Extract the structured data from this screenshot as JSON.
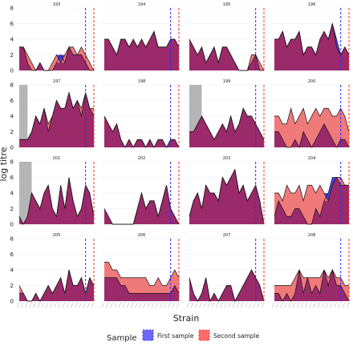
{
  "chart_data": {
    "type": "area",
    "title": "",
    "xlabel": "Strain",
    "ylabel": "log titre",
    "ylim": [
      0,
      8
    ],
    "yticks": [
      0,
      2,
      4,
      6,
      8
    ],
    "grid": true,
    "legend": {
      "title": "Sample",
      "position": "bottom",
      "entries": [
        {
          "name": "First sample",
          "color": "#3a33ff"
        },
        {
          "name": "Second sample",
          "color": "#ff3a3a"
        }
      ]
    },
    "overlap_color": "#9a2a6a",
    "second_fill_color": "#f07a7a",
    "region_color": "#b5b5b5",
    "x_count": 19,
    "x_tick_labels_note": "rotated strain labels (illegible)",
    "panels": [
      {
        "id": "193",
        "first": [
          3,
          3,
          1,
          0,
          0,
          1,
          0,
          0,
          0,
          1,
          2,
          1,
          3,
          2,
          2,
          2,
          1,
          0,
          0
        ],
        "second": [
          3,
          3,
          2,
          1,
          0,
          1,
          0,
          0,
          1,
          2,
          1,
          2,
          3,
          3,
          2,
          3,
          2,
          1,
          0
        ],
        "first_line": 16,
        "second_line": 18
      },
      {
        "id": "194",
        "first": [
          4,
          4,
          3,
          2,
          4,
          4,
          3,
          4,
          3,
          4,
          3,
          4,
          5,
          3,
          3,
          3,
          4,
          4,
          3
        ],
        "second": [
          4,
          4,
          3,
          2,
          4,
          4,
          3,
          4,
          3,
          4,
          3,
          4,
          5,
          3,
          3,
          3,
          4,
          4,
          3
        ],
        "first_line": 16,
        "second_line": 18
      },
      {
        "id": "195",
        "first": [
          4,
          3,
          2,
          3,
          1,
          2,
          3,
          1,
          3,
          3,
          2,
          1,
          0,
          0,
          0,
          1,
          2,
          0,
          0
        ],
        "second": [
          4,
          3,
          2,
          3,
          1,
          2,
          3,
          1,
          3,
          3,
          2,
          1,
          0,
          0,
          0,
          2,
          2,
          1,
          0
        ],
        "first_line": 16,
        "second_line": 18
      },
      {
        "id": "196",
        "first": [
          4,
          4,
          5,
          3,
          4,
          4,
          5,
          2,
          3,
          3,
          2,
          4,
          5,
          4,
          6,
          4,
          2,
          3,
          2
        ],
        "second": [
          4,
          4,
          5,
          3,
          4,
          4,
          5,
          2,
          3,
          3,
          2,
          4,
          5,
          4,
          6,
          3,
          2,
          3,
          2
        ],
        "first_line": 16,
        "second_line": 18
      },
      {
        "id": "197",
        "first": [
          1,
          1,
          1,
          2,
          4,
          3,
          5,
          2,
          4,
          6,
          5,
          5,
          7,
          5,
          6,
          4,
          7,
          5,
          4
        ],
        "second": [
          1,
          1,
          1,
          2,
          4,
          3,
          5,
          3,
          4,
          6,
          5,
          5,
          7,
          5,
          6,
          5,
          7,
          5,
          5
        ],
        "first_line": 16,
        "second_line": 18,
        "region": [
          0,
          2,
          8
        ]
      },
      {
        "id": "198",
        "first": [
          4,
          3,
          2,
          3,
          1,
          0,
          1,
          0,
          1,
          1,
          0,
          1,
          0,
          1,
          1,
          0,
          1,
          1,
          0
        ],
        "second": [
          4,
          3,
          2,
          3,
          1,
          0,
          1,
          0,
          1,
          1,
          0,
          1,
          0,
          1,
          1,
          0,
          1,
          1,
          0
        ],
        "first_line": 16,
        "second_line": 18
      },
      {
        "id": "199",
        "first": [
          2,
          2,
          3,
          4,
          3,
          2,
          1,
          2,
          3,
          2,
          4,
          2,
          3,
          5,
          4,
          4,
          3,
          2,
          1
        ],
        "second": [
          2,
          2,
          3,
          4,
          3,
          2,
          1,
          2,
          3,
          2,
          4,
          2,
          3,
          5,
          4,
          4,
          3,
          2,
          1
        ],
        "first_line": 16,
        "second_line": 18,
        "region": [
          0,
          3,
          8
        ]
      },
      {
        "id": "200",
        "first": [
          2,
          2,
          1,
          0,
          0,
          1,
          0,
          2,
          1,
          0,
          1,
          2,
          3,
          2,
          1,
          0,
          1,
          1,
          0
        ],
        "second": [
          4,
          4,
          3,
          3,
          5,
          3,
          4,
          5,
          3,
          4,
          5,
          4,
          5,
          5,
          4,
          4,
          5,
          4,
          2
        ],
        "first_line": 16,
        "second_line": 18
      },
      {
        "id": "201",
        "first": [
          1,
          0,
          1,
          4,
          3,
          2,
          4,
          5,
          2,
          1,
          5,
          2,
          6,
          3,
          1,
          2,
          5,
          4,
          1
        ],
        "second": [
          1,
          0,
          1,
          4,
          3,
          2,
          4,
          5,
          2,
          1,
          5,
          2,
          6,
          3,
          1,
          2,
          5,
          4,
          1
        ],
        "first_line": 16,
        "second_line": 18,
        "region": [
          0,
          3,
          8
        ]
      },
      {
        "id": "202",
        "first": [
          2,
          1,
          0,
          0,
          0,
          0,
          0,
          0,
          2,
          4,
          2,
          3,
          3,
          1,
          3,
          5,
          2,
          1,
          0
        ],
        "second": [
          2,
          1,
          0,
          0,
          0,
          0,
          0,
          0,
          2,
          4,
          2,
          3,
          3,
          1,
          3,
          5,
          2,
          1,
          0
        ],
        "first_line": 16,
        "second_line": 18
      },
      {
        "id": "203",
        "first": [
          1,
          3,
          4,
          2,
          5,
          4,
          4,
          3,
          6,
          5,
          6,
          7,
          4,
          5,
          3,
          4,
          5,
          3,
          0
        ],
        "second": [
          1,
          3,
          4,
          2,
          5,
          4,
          4,
          3,
          6,
          5,
          6,
          7,
          4,
          5,
          3,
          4,
          5,
          3,
          0
        ],
        "first_line": 16,
        "second_line": 18
      },
      {
        "id": "204",
        "first": [
          1,
          3,
          2,
          1,
          1,
          2,
          2,
          1,
          0,
          0,
          2,
          1,
          3,
          4,
          6,
          6,
          5,
          5,
          5
        ],
        "second": [
          4,
          4,
          3,
          5,
          4,
          4,
          5,
          3,
          5,
          5,
          4,
          5,
          4,
          3,
          5,
          6,
          6,
          5,
          5
        ],
        "first_line": 16,
        "second_line": 18
      },
      {
        "id": "205",
        "first": [
          1,
          1,
          0,
          0,
          1,
          0,
          1,
          2,
          1,
          2,
          3,
          1,
          4,
          2,
          2,
          3,
          1,
          3,
          2
        ],
        "second": [
          2,
          1,
          0,
          0,
          1,
          0,
          1,
          2,
          1,
          2,
          3,
          1,
          4,
          2,
          2,
          3,
          1,
          3,
          2
        ],
        "first_line": 16,
        "second_line": 18
      },
      {
        "id": "206",
        "first": [
          3,
          3,
          3,
          3,
          2,
          2,
          1,
          1,
          1,
          1,
          1,
          1,
          1,
          1,
          1,
          1,
          1,
          2,
          1
        ],
        "second": [
          5,
          5,
          4,
          4,
          3,
          3,
          3,
          3,
          3,
          3,
          3,
          2,
          2,
          3,
          2,
          2,
          3,
          4,
          3
        ],
        "first_line": 16,
        "second_line": 18
      },
      {
        "id": "207",
        "first": [
          3,
          1,
          0,
          1,
          3,
          0,
          1,
          0,
          1,
          2,
          2,
          0,
          1,
          2,
          3,
          4,
          3,
          2,
          0
        ],
        "second": [
          3,
          1,
          0,
          1,
          3,
          0,
          1,
          0,
          1,
          2,
          2,
          0,
          1,
          2,
          3,
          4,
          3,
          2,
          0
        ],
        "first_line": 16,
        "second_line": 18
      },
      {
        "id": "208",
        "first": [
          1,
          1,
          0,
          1,
          0,
          1,
          4,
          1,
          3,
          1,
          2,
          1,
          4,
          2,
          4,
          2,
          2,
          1,
          0
        ],
        "second": [
          2,
          2,
          2,
          2,
          2,
          3,
          4,
          3,
          3,
          3,
          3,
          3,
          4,
          3,
          4,
          3,
          3,
          2,
          2
        ],
        "first_line": 16,
        "second_line": 18
      }
    ]
  }
}
